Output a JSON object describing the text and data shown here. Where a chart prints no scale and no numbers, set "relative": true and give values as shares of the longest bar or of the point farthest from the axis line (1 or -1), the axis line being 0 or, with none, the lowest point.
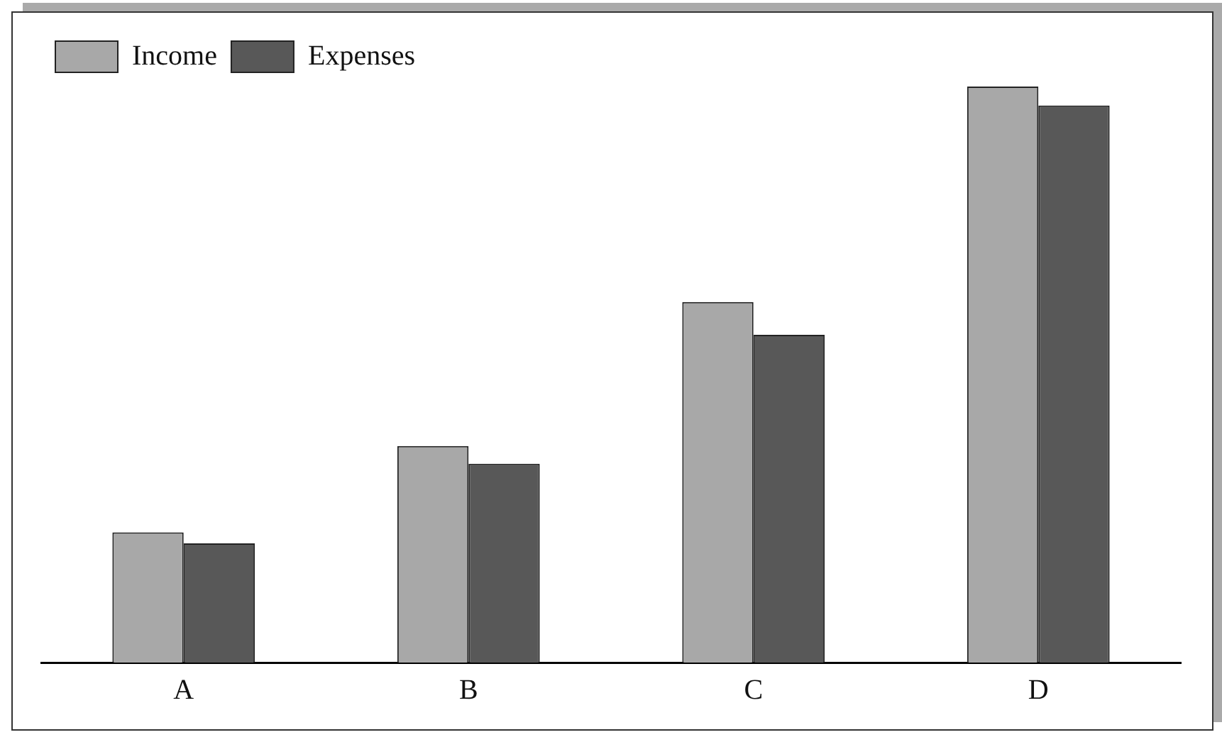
{
  "chart_data": {
    "type": "bar",
    "relative": true,
    "categories": [
      "A",
      "B",
      "C",
      "D"
    ],
    "series": [
      {
        "name": "Income",
        "color": "#a8a8a8",
        "values": [
          0.226,
          0.376,
          0.626,
          1
        ]
      },
      {
        "name": "Expenses",
        "color": "#585858",
        "values": [
          0.207,
          0.345,
          0.569,
          0.967
        ]
      }
    ],
    "legend": "top left",
    "grid": false
  }
}
